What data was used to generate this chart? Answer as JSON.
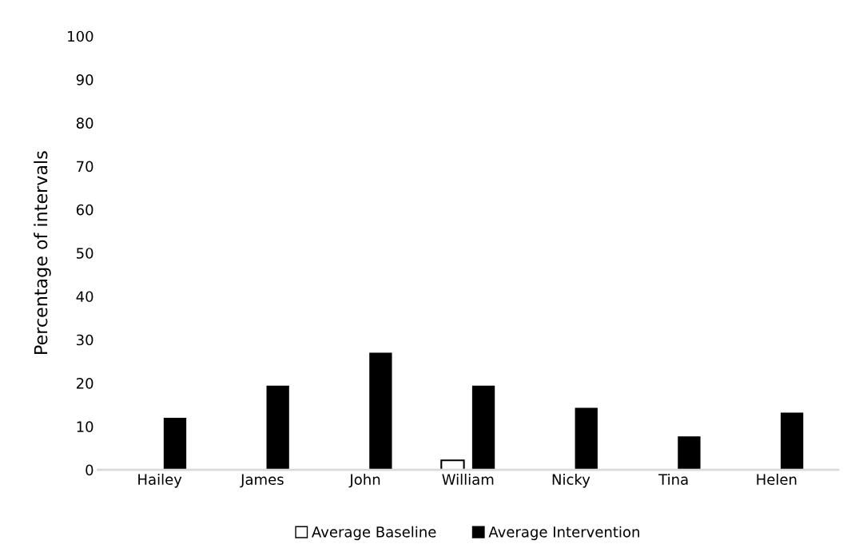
{
  "chart_data": {
    "type": "bar",
    "ylabel": "Percentage of intervals",
    "categories": [
      "Hailey",
      "James",
      "John",
      "William",
      "Nicky",
      "Tina",
      "Helen"
    ],
    "series": [
      {
        "name": "Average Baseline",
        "color": "#ffffff",
        "values": [
          null,
          null,
          null,
          2.2,
          null,
          null,
          null
        ]
      },
      {
        "name": "Average Intervention",
        "color": "#000000",
        "values": [
          12,
          19.4,
          27,
          19.4,
          14.3,
          7.7,
          13.2
        ]
      }
    ],
    "ylim": [
      0,
      100
    ],
    "yticks": [
      0,
      10,
      20,
      30,
      40,
      50,
      60,
      70,
      80,
      90,
      100
    ],
    "grid": false,
    "legend": "bottom"
  }
}
